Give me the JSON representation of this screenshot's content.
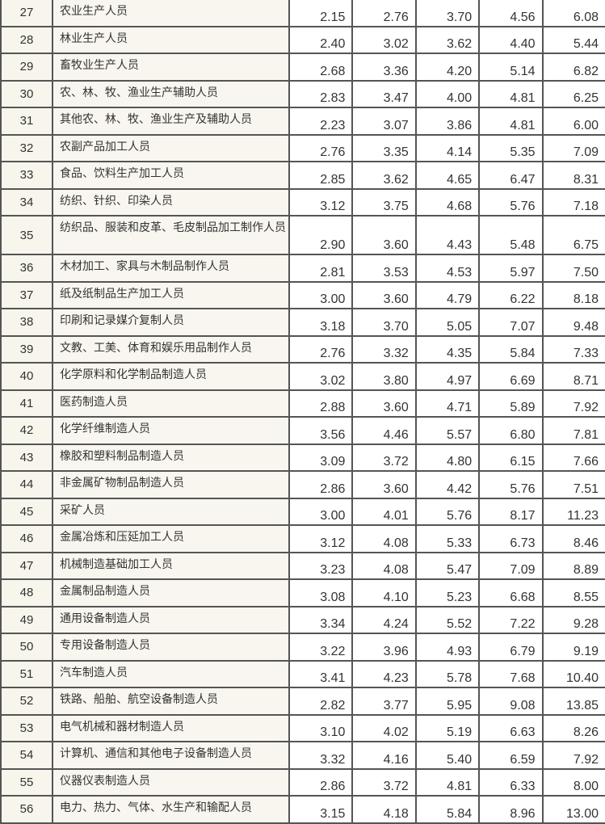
{
  "rows": [
    {
      "no": "27",
      "name": "农业生产人员",
      "values": [
        "2.15",
        "2.76",
        "3.70",
        "4.56",
        "6.08"
      ]
    },
    {
      "no": "28",
      "name": "林业生产人员",
      "values": [
        "2.40",
        "3.02",
        "3.62",
        "4.40",
        "5.44"
      ]
    },
    {
      "no": "29",
      "name": "畜牧业生产人员",
      "values": [
        "2.68",
        "3.36",
        "4.20",
        "5.14",
        "6.82"
      ]
    },
    {
      "no": "30",
      "name": "农、林、牧、渔业生产辅助人员",
      "values": [
        "2.83",
        "3.47",
        "4.00",
        "4.81",
        "6.25"
      ]
    },
    {
      "no": "31",
      "name": "其他农、林、牧、渔业生产及辅助人员",
      "values": [
        "2.23",
        "3.07",
        "3.86",
        "4.81",
        "6.00"
      ]
    },
    {
      "no": "32",
      "name": "农副产品加工人员",
      "values": [
        "2.76",
        "3.35",
        "4.14",
        "5.35",
        "7.09"
      ]
    },
    {
      "no": "33",
      "name": "食品、饮料生产加工人员",
      "values": [
        "2.85",
        "3.62",
        "4.65",
        "6.47",
        "8.31"
      ]
    },
    {
      "no": "34",
      "name": "纺织、针织、印染人员",
      "values": [
        "3.12",
        "3.75",
        "4.68",
        "5.76",
        "7.18"
      ]
    },
    {
      "no": "35",
      "name": "纺织品、服装和皮革、毛皮制品加工制作人员",
      "values": [
        "2.90",
        "3.60",
        "4.43",
        "5.48",
        "6.75"
      ]
    },
    {
      "no": "36",
      "name": "木材加工、家具与木制品制作人员",
      "values": [
        "2.81",
        "3.53",
        "4.53",
        "5.97",
        "7.50"
      ]
    },
    {
      "no": "37",
      "name": "纸及纸制品生产加工人员",
      "values": [
        "3.00",
        "3.60",
        "4.79",
        "6.22",
        "8.18"
      ]
    },
    {
      "no": "38",
      "name": "印刷和记录媒介复制人员",
      "values": [
        "3.18",
        "3.70",
        "5.05",
        "7.07",
        "9.48"
      ]
    },
    {
      "no": "39",
      "name": "文教、工美、体育和娱乐用品制作人员",
      "values": [
        "2.76",
        "3.32",
        "4.35",
        "5.84",
        "7.33"
      ]
    },
    {
      "no": "40",
      "name": "化学原料和化学制品制造人员",
      "values": [
        "3.02",
        "3.80",
        "4.97",
        "6.69",
        "8.71"
      ]
    },
    {
      "no": "41",
      "name": "医药制造人员",
      "values": [
        "2.88",
        "3.60",
        "4.71",
        "5.89",
        "7.92"
      ]
    },
    {
      "no": "42",
      "name": "化学纤维制造人员",
      "values": [
        "3.56",
        "4.46",
        "5.57",
        "6.80",
        "7.81"
      ]
    },
    {
      "no": "43",
      "name": "橡胶和塑料制品制造人员",
      "values": [
        "3.09",
        "3.72",
        "4.80",
        "6.15",
        "7.66"
      ]
    },
    {
      "no": "44",
      "name": "非金属矿物制品制造人员",
      "values": [
        "2.86",
        "3.60",
        "4.42",
        "5.76",
        "7.51"
      ]
    },
    {
      "no": "45",
      "name": "采矿人员",
      "values": [
        "3.00",
        "4.01",
        "5.76",
        "8.17",
        "11.23"
      ]
    },
    {
      "no": "46",
      "name": "金属冶炼和压延加工人员",
      "values": [
        "3.12",
        "4.08",
        "5.33",
        "6.73",
        "8.46"
      ]
    },
    {
      "no": "47",
      "name": "机械制造基础加工人员",
      "values": [
        "3.23",
        "4.08",
        "5.47",
        "7.09",
        "8.89"
      ]
    },
    {
      "no": "48",
      "name": "金属制品制造人员",
      "values": [
        "3.08",
        "4.10",
        "5.23",
        "6.68",
        "8.55"
      ]
    },
    {
      "no": "49",
      "name": "通用设备制造人员",
      "values": [
        "3.34",
        "4.24",
        "5.52",
        "7.22",
        "9.28"
      ]
    },
    {
      "no": "50",
      "name": "专用设备制造人员",
      "values": [
        "3.22",
        "3.96",
        "4.93",
        "6.79",
        "9.19"
      ]
    },
    {
      "no": "51",
      "name": "汽车制造人员",
      "values": [
        "3.41",
        "4.23",
        "5.78",
        "7.68",
        "10.40"
      ]
    },
    {
      "no": "52",
      "name": "铁路、船舶、航空设备制造人员",
      "values": [
        "2.82",
        "3.77",
        "5.95",
        "9.08",
        "13.85"
      ]
    },
    {
      "no": "53",
      "name": "电气机械和器材制造人员",
      "values": [
        "3.10",
        "4.02",
        "5.19",
        "6.63",
        "8.26"
      ]
    },
    {
      "no": "54",
      "name": "计算机、通信和其他电子设备制造人员",
      "values": [
        "3.32",
        "4.16",
        "5.40",
        "6.59",
        "7.92"
      ]
    },
    {
      "no": "55",
      "name": "仪器仪表制造人员",
      "values": [
        "2.86",
        "3.72",
        "4.81",
        "6.33",
        "8.00"
      ]
    },
    {
      "no": "56",
      "name": "电力、热力、气体、水生产和输配人员",
      "values": [
        "3.15",
        "4.18",
        "5.84",
        "8.96",
        "13.00"
      ]
    }
  ]
}
